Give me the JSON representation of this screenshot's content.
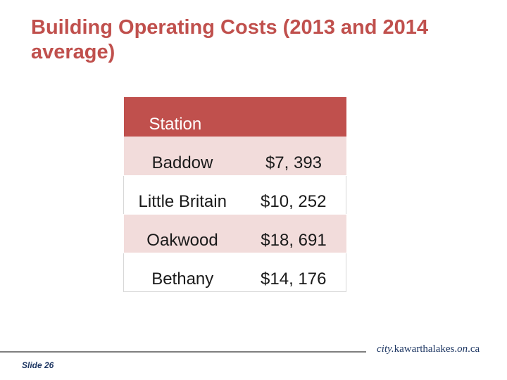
{
  "title": "Building Operating Costs (2013 and 2014 average)",
  "table": {
    "header": [
      "Station",
      ""
    ],
    "rows": [
      {
        "station": "Baddow",
        "cost": "$7, 393"
      },
      {
        "station": "Little Britain",
        "cost": "$10, 252"
      },
      {
        "station": "Oakwood",
        "cost": "$18, 691"
      },
      {
        "station": "Bethany",
        "cost": "$14, 176"
      }
    ]
  },
  "footer": {
    "site_prefix": "city.",
    "site_main": "kawarthalakes.",
    "site_mid": "on",
    "site_suffix": ".ca",
    "slide_label": "Slide 26"
  },
  "colors": {
    "accent": "#c0504d",
    "band": "#f2dcdb",
    "footer_text": "#1f3864"
  }
}
